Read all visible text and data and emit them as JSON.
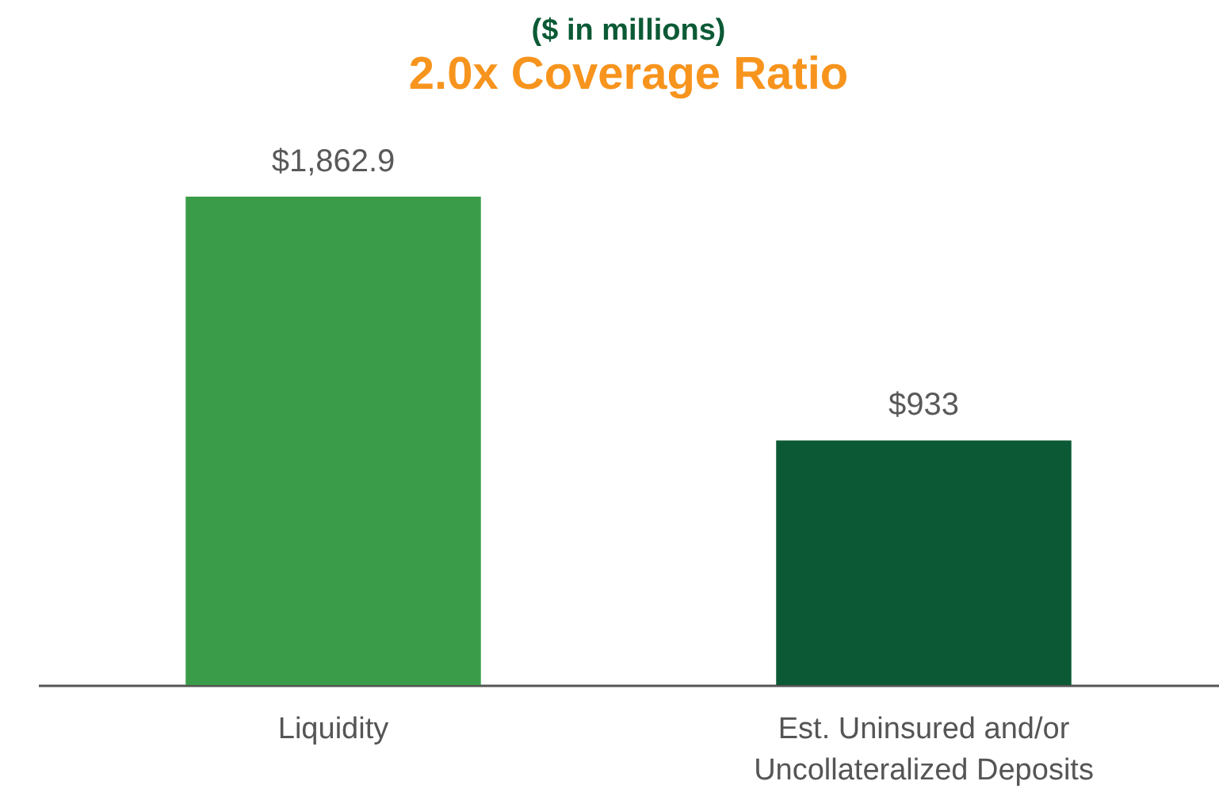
{
  "chart_data": {
    "type": "bar",
    "title": "2.0x Coverage Ratio",
    "subtitle": "($ in millions)",
    "categories": [
      "Liquidity",
      "Est. Uninsured and/or Uncollateralized Deposits"
    ],
    "values": [
      1862.9,
      933
    ],
    "colors": [
      "#3a9c48",
      "#0b5a35"
    ],
    "value_labels": [
      "$1,862.9",
      "$933"
    ]
  }
}
